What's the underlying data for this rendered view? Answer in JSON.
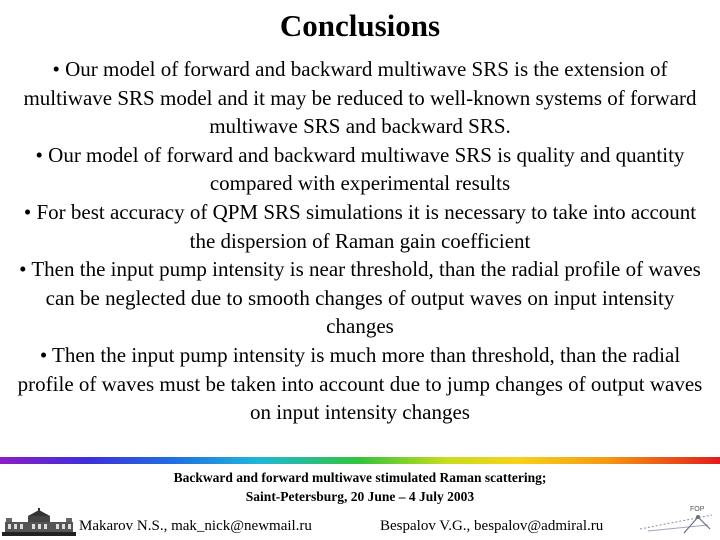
{
  "slide": {
    "title": "Conclusions",
    "bullets": [
      "• Our model of forward and backward multiwave SRS is the extension of multiwave SRS model and it may be reduced to well-known systems of forward multiwave SRS and backward SRS.",
      "• Our model of forward and backward multiwave SRS is quality and quantity compared with experimental results",
      "• For best accuracy of QPM SRS simulations it is necessary to take into account the dispersion of Raman gain coefficient",
      "• Then the input pump intensity is near threshold, than the radial profile of waves can be neglected due to smooth changes of output waves on input intensity changes",
      "• Then the input pump intensity is much more than threshold, than the radial profile of waves must be taken into account due to jump changes of output waves on input intensity changes"
    ]
  },
  "footer": {
    "line1": "Backward and forward multiwave stimulated Raman scattering;",
    "line2": "Saint-Petersburg, 20 June – 4 July 2003",
    "author1": "Makarov N.S., mak_nick@newmail.ru",
    "author2": "Bespalov V.G., bespalov@admiral.ru",
    "logo_right_text": "FOP"
  }
}
